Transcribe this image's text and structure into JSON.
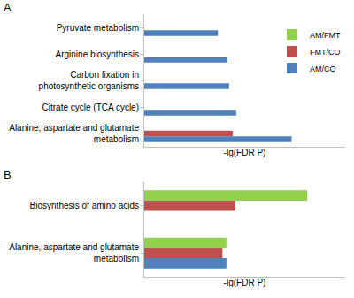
{
  "chart_data": [
    {
      "type": "bar",
      "title": "A",
      "orientation": "horizontal",
      "x_label": "-lg(FDR P)",
      "tick_labels": "y",
      "legend": "right",
      "grid": false,
      "xlim": [
        0,
        4.5
      ],
      "categories": [
        "Pyruvate metabolism",
        "Arginine biosynthesis",
        "Carbon fixation in photosynthetic organisms",
        "Citrate cycle (TCA cycle)",
        "Alanine, aspartate and glutamate metabolism"
      ],
      "series": [
        {
          "name": "AM/FMT",
          "color": "#92D050",
          "values": [
            null,
            null,
            null,
            null,
            null
          ]
        },
        {
          "name": "FMT/CO",
          "color": "#C0504D",
          "values": [
            null,
            null,
            null,
            null,
            1.98
          ]
        },
        {
          "name": "AM/CO",
          "color": "#4F81BD",
          "values": [
            1.65,
            1.86,
            1.9,
            2.06,
            3.3
          ]
        }
      ]
    },
    {
      "type": "bar",
      "title": "B",
      "orientation": "horizontal",
      "x_label": "-lg(FDR P)",
      "tick_labels": "y",
      "grid": false,
      "xlim": [
        0,
        4.5
      ],
      "categories": [
        "Biosynthesis of amino acids",
        "Alanine, aspartate and glutamate metabolism"
      ],
      "series": [
        {
          "name": "AM/FMT",
          "color": "#92D050",
          "values": [
            3.65,
            1.84
          ]
        },
        {
          "name": "FMT/CO",
          "color": "#C0504D",
          "values": [
            2.04,
            1.75
          ]
        },
        {
          "name": "AM/CO",
          "color": "#4F81BD",
          "values": [
            null,
            1.84
          ]
        }
      ]
    }
  ]
}
